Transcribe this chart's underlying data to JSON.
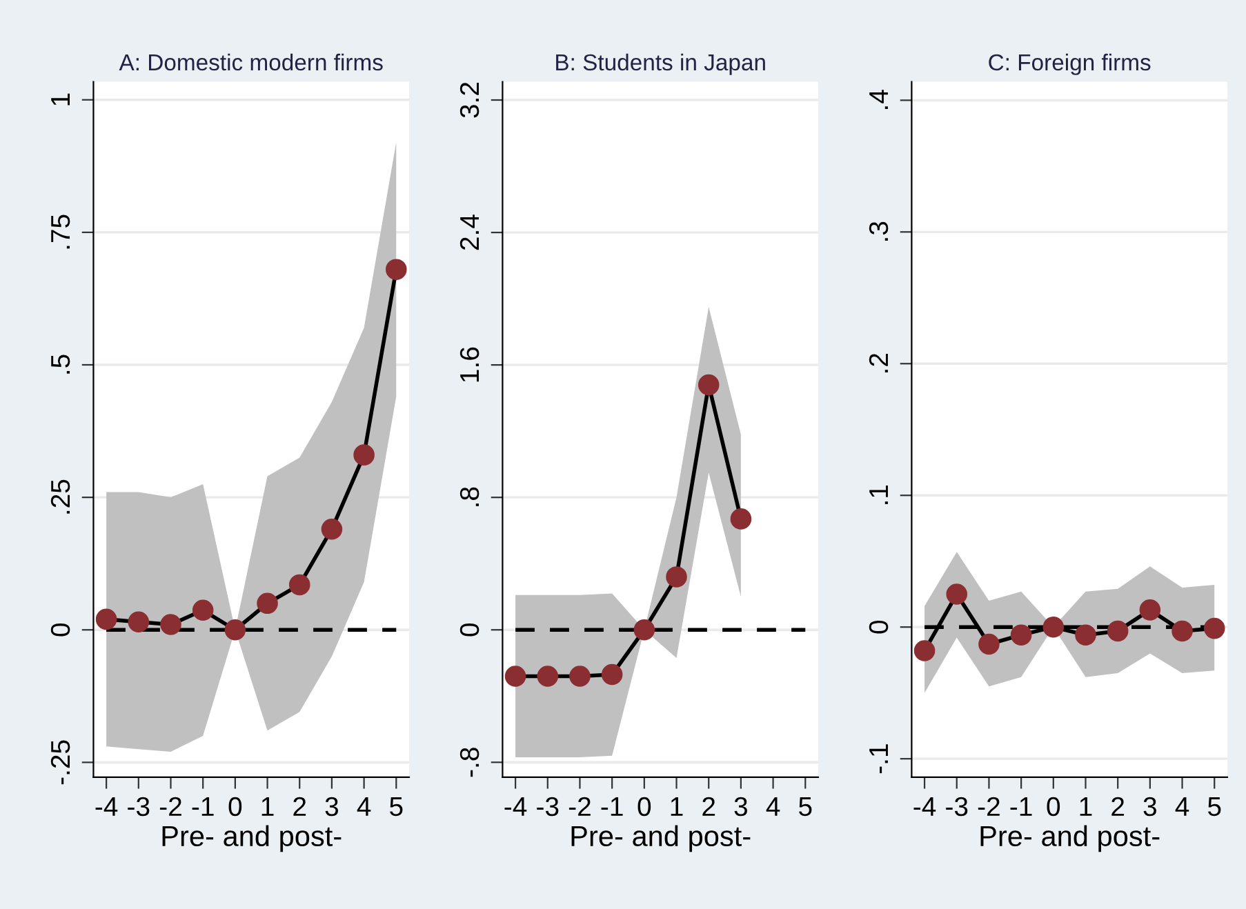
{
  "chart_data": [
    {
      "type": "line",
      "title": "A: Domestic modern firms",
      "xlabel": "Pre- and post-",
      "x": [
        -4,
        -3,
        -2,
        -1,
        0,
        1,
        2,
        3,
        4,
        5
      ],
      "series": [
        {
          "color": "#8b2e32",
          "values": [
            0.02,
            0.015,
            0.01,
            0.037,
            0,
            0.05,
            0.085,
            0.19,
            0.33,
            0.68
          ],
          "lower": [
            -0.22,
            -0.225,
            -0.23,
            -0.2,
            0,
            -0.19,
            -0.155,
            -0.05,
            0.09,
            0.44
          ],
          "upper": [
            0.26,
            0.26,
            0.25,
            0.275,
            0,
            0.29,
            0.325,
            0.43,
            0.57,
            0.92
          ]
        }
      ],
      "xlim": [
        -4.4,
        5.4
      ],
      "xticks": [
        -4,
        -3,
        -2,
        -1,
        0,
        1,
        2,
        3,
        4,
        5
      ],
      "ylim": [
        -0.278,
        1.034
      ],
      "yticks": [
        {
          "value": -0.25,
          "label": "-.25"
        },
        0,
        {
          "value": 0.25,
          "label": ".25"
        },
        {
          "value": 0.5,
          "label": ".5"
        },
        {
          "value": 0.75,
          "label": ".75"
        },
        1
      ],
      "ref_lines": [
        {
          "axis": "y",
          "value": 0,
          "color": "#000000",
          "line_style": "dashed"
        }
      ],
      "grid": "y",
      "marker": "circle",
      "line_style": "solid"
    },
    {
      "type": "line",
      "title": "B: Students in Japan",
      "xlabel": "Pre- and post-",
      "x": [
        -4,
        -3,
        -2,
        -1,
        0,
        1,
        2,
        3
      ],
      "series": [
        {
          "color": "#8b2e32",
          "values": [
            -0.28,
            -0.28,
            -0.28,
            -0.27,
            0,
            0.32,
            1.48,
            0.67
          ],
          "lower": [
            -0.77,
            -0.77,
            -0.77,
            -0.76,
            0,
            -0.17,
            0.95,
            0.2
          ],
          "upper": [
            0.21,
            0.21,
            0.21,
            0.22,
            0,
            0.8,
            1.95,
            1.18
          ]
        }
      ],
      "xlim": [
        -4.4,
        5.4
      ],
      "xticks": [
        -4,
        -3,
        -2,
        -1,
        0,
        1,
        2,
        3,
        4,
        5
      ],
      "ylim": [
        -0.89,
        3.31
      ],
      "yticks": [
        {
          "value": -0.8,
          "label": "-.8"
        },
        0,
        {
          "value": 0.8,
          "label": ".8"
        },
        1.6,
        2.4,
        3.2
      ],
      "ref_lines": [
        {
          "axis": "y",
          "value": 0,
          "color": "#000000",
          "line_style": "dashed"
        }
      ],
      "grid": "y",
      "marker": "circle",
      "line_style": "solid"
    },
    {
      "type": "line",
      "title": "C: Foreign firms",
      "xlabel": "Pre- and post-",
      "x": [
        -4,
        -3,
        -2,
        -1,
        0,
        1,
        2,
        3,
        4,
        5
      ],
      "series": [
        {
          "color": "#8b2e32",
          "values": [
            -0.018,
            0.025,
            -0.013,
            -0.006,
            0,
            -0.006,
            -0.003,
            0.013,
            -0.003,
            -0.001
          ],
          "lower": [
            -0.05,
            -0.008,
            -0.045,
            -0.038,
            0,
            -0.038,
            -0.035,
            -0.02,
            -0.035,
            -0.033
          ],
          "upper": [
            0.016,
            0.057,
            0.02,
            0.027,
            0,
            0.027,
            0.029,
            0.046,
            0.03,
            0.032
          ]
        }
      ],
      "xlim": [
        -4.4,
        5.4
      ],
      "xticks": [
        -4,
        -3,
        -2,
        -1,
        0,
        1,
        2,
        3,
        4,
        5
      ],
      "ylim": [
        -0.114,
        0.414
      ],
      "yticks": [
        {
          "value": -0.1,
          "label": "-.1"
        },
        0,
        {
          "value": 0.1,
          "label": ".1"
        },
        {
          "value": 0.2,
          "label": ".2"
        },
        {
          "value": 0.3,
          "label": ".3"
        },
        {
          "value": 0.4,
          "label": ".4"
        }
      ],
      "ref_lines": [
        {
          "axis": "y",
          "value": 0,
          "color": "#000000",
          "line_style": "dashed"
        }
      ],
      "grid": "y",
      "marker": "circle",
      "line_style": "solid"
    }
  ]
}
